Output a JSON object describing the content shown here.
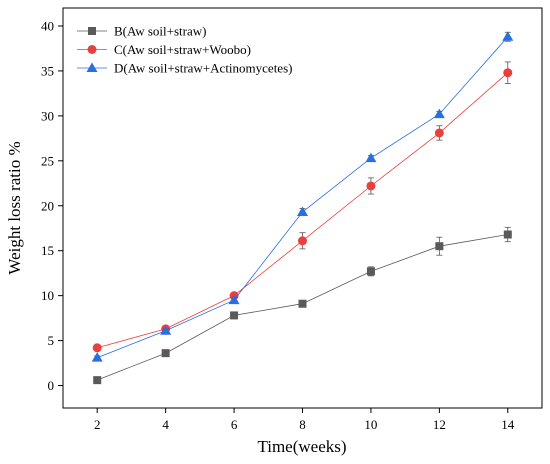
{
  "chart_data": {
    "type": "line",
    "title": "",
    "xlabel": "Time(weeks)",
    "ylabel": "Weight loss ratio %",
    "x": [
      2,
      4,
      6,
      8,
      10,
      12,
      14
    ],
    "xlim": [
      1,
      15
    ],
    "ylim": [
      -2.5,
      42
    ],
    "x_ticks": [
      "2",
      "4",
      "6",
      "8",
      "10",
      "12",
      "14"
    ],
    "y_ticks": [
      "0",
      "5",
      "10",
      "15",
      "20",
      "25",
      "30",
      "35",
      "40"
    ],
    "grid": false,
    "legend_position": "top-left",
    "series": [
      {
        "name": "B(Aw soil+straw)",
        "color": "#5a5a5a",
        "marker": "square",
        "values": [
          0.6,
          3.6,
          7.8,
          9.1,
          12.7,
          15.5,
          16.8
        ],
        "errors": [
          0.2,
          0.3,
          0.3,
          0.3,
          0.5,
          1.0,
          0.8
        ]
      },
      {
        "name": "C(Aw soil+straw+Woobo)",
        "color": "#e8403c",
        "marker": "circle",
        "values": [
          4.2,
          6.3,
          10.0,
          16.1,
          22.2,
          28.1,
          34.8
        ],
        "errors": [
          0.2,
          0.2,
          0.3,
          0.9,
          0.9,
          0.8,
          1.2
        ]
      },
      {
        "name": "D(Aw soil+straw+Actinomycetes)",
        "color": "#2a6fe0",
        "marker": "triangle",
        "values": [
          3.1,
          6.1,
          9.5,
          19.3,
          25.3,
          30.2,
          38.8
        ],
        "errors": [
          0.2,
          0.2,
          0.3,
          0.4,
          0.3,
          0.3,
          0.5
        ]
      }
    ]
  }
}
